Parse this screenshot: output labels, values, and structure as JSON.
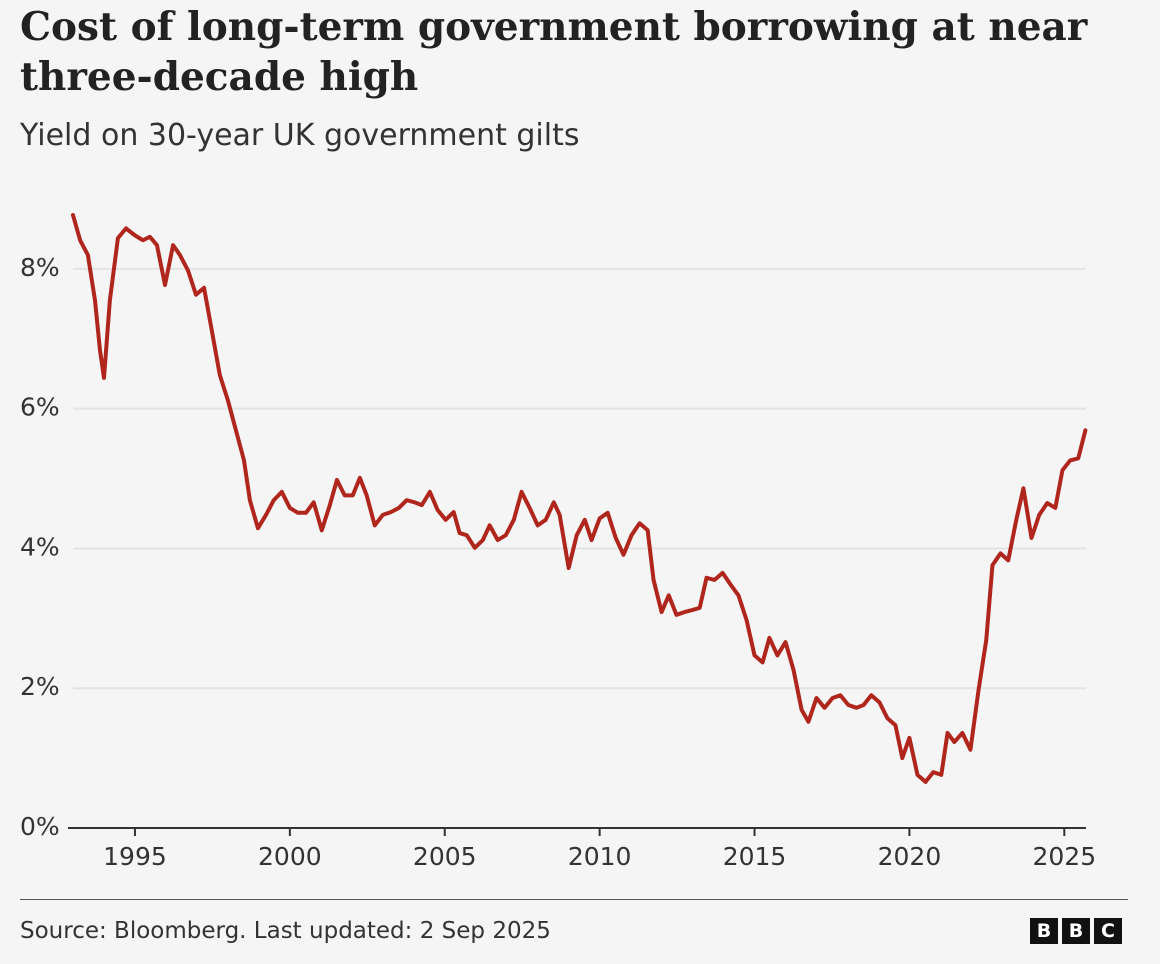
{
  "chart_data": {
    "type": "line",
    "title": "Cost of long-term government borrowing at near three-decade high",
    "subtitle": "Yield on 30-year UK government gilts",
    "source": "Source: Bloomberg. Last updated: 2 Sep 2025",
    "logo": [
      "B",
      "B",
      "C"
    ],
    "color": "#b0261c",
    "xlim": [
      1993,
      2025.7
    ],
    "xticks": [
      1995,
      2000,
      2005,
      2010,
      2015,
      2020,
      2025
    ],
    "ylim": [
      0,
      8.8
    ],
    "yticks": [
      {
        "value": 0,
        "label": "0%"
      },
      {
        "value": 2,
        "label": "2%"
      },
      {
        "value": 4,
        "label": "4%"
      },
      {
        "value": 6,
        "label": "6%"
      },
      {
        "value": 8,
        "label": "8%"
      }
    ],
    "grid": true,
    "x": [
      1993.0,
      1993.23,
      1993.48,
      1993.71,
      1993.87,
      1994.0,
      1994.19,
      1994.45,
      1994.71,
      1995.0,
      1995.26,
      1995.48,
      1995.71,
      1995.97,
      1996.23,
      1996.45,
      1996.71,
      1996.97,
      1997.23,
      1997.48,
      1997.74,
      1998.0,
      1998.26,
      1998.52,
      1998.71,
      1998.97,
      1999.23,
      1999.48,
      1999.74,
      2000.0,
      2000.26,
      2000.52,
      2000.77,
      2001.03,
      2001.29,
      2001.52,
      2001.77,
      2002.03,
      2002.26,
      2002.48,
      2002.74,
      2003.0,
      2003.26,
      2003.52,
      2003.77,
      2004.03,
      2004.26,
      2004.52,
      2004.77,
      2005.03,
      2005.29,
      2005.48,
      2005.71,
      2005.97,
      2006.23,
      2006.45,
      2006.71,
      2006.97,
      2007.23,
      2007.48,
      2007.74,
      2008.0,
      2008.26,
      2008.52,
      2008.71,
      2009.0,
      2009.26,
      2009.52,
      2009.74,
      2010.0,
      2010.26,
      2010.52,
      2010.77,
      2011.03,
      2011.29,
      2011.55,
      2011.74,
      2012.0,
      2012.23,
      2012.48,
      2012.74,
      2013.0,
      2013.23,
      2013.45,
      2013.71,
      2013.97,
      2014.23,
      2014.48,
      2014.74,
      2015.0,
      2015.26,
      2015.48,
      2015.74,
      2016.0,
      2016.26,
      2016.52,
      2016.74,
      2017.0,
      2017.26,
      2017.52,
      2017.77,
      2018.03,
      2018.29,
      2018.52,
      2018.77,
      2019.03,
      2019.29,
      2019.55,
      2019.77,
      2020.0,
      2020.26,
      2020.52,
      2020.77,
      2021.03,
      2021.23,
      2021.45,
      2021.71,
      2021.97,
      2022.23,
      2022.48,
      2022.68,
      2022.94,
      2023.19,
      2023.45,
      2023.68,
      2023.94,
      2024.19,
      2024.45,
      2024.71,
      2024.94,
      2025.19,
      2025.45,
      2025.68
    ],
    "values": [
      8.77,
      8.41,
      8.2,
      7.55,
      6.84,
      6.44,
      7.55,
      8.44,
      8.58,
      8.48,
      8.41,
      8.46,
      8.34,
      7.77,
      8.34,
      8.2,
      7.98,
      7.63,
      7.73,
      7.12,
      6.48,
      6.12,
      5.69,
      5.26,
      4.69,
      4.29,
      4.48,
      4.69,
      4.81,
      4.58,
      4.51,
      4.51,
      4.66,
      4.26,
      4.62,
      4.98,
      4.76,
      4.76,
      5.01,
      4.76,
      4.33,
      4.48,
      4.52,
      4.58,
      4.69,
      4.66,
      4.62,
      4.81,
      4.55,
      4.41,
      4.52,
      4.22,
      4.19,
      4.01,
      4.12,
      4.33,
      4.12,
      4.19,
      4.41,
      4.81,
      4.58,
      4.33,
      4.41,
      4.66,
      4.48,
      3.72,
      4.19,
      4.41,
      4.12,
      4.43,
      4.51,
      4.15,
      3.91,
      4.19,
      4.36,
      4.26,
      3.55,
      3.09,
      3.33,
      3.05,
      3.09,
      3.12,
      3.15,
      3.58,
      3.55,
      3.65,
      3.48,
      3.33,
      2.98,
      2.47,
      2.37,
      2.72,
      2.47,
      2.66,
      2.26,
      1.69,
      1.52,
      1.86,
      1.72,
      1.86,
      1.9,
      1.76,
      1.72,
      1.76,
      1.9,
      1.8,
      1.57,
      1.47,
      1.0,
      1.29,
      0.76,
      0.66,
      0.8,
      0.76,
      1.36,
      1.23,
      1.36,
      1.12,
      1.97,
      2.69,
      3.76,
      3.93,
      3.83,
      4.41,
      4.86,
      4.15,
      4.48,
      4.65,
      4.58,
      5.12,
      5.26,
      5.29,
      5.69
    ]
  }
}
